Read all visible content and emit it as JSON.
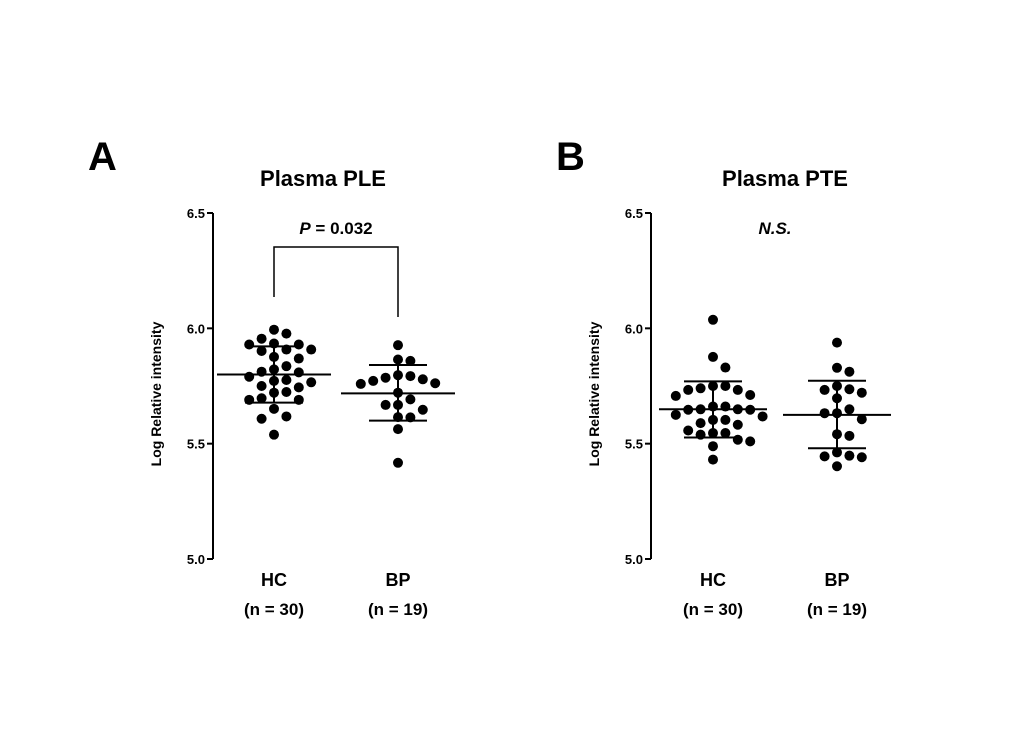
{
  "chart_data": [
    {
      "panel_label": "A",
      "type": "scatter",
      "title": "Plasma PLE",
      "ylabel": "Log Relative intensity",
      "ylim": [
        5.0,
        6.5
      ],
      "yticks": [
        "5.0",
        "5.5",
        "6.0",
        "6.5"
      ],
      "categories": [
        "HC",
        "BP"
      ],
      "category_counts": [
        "(n = 30)",
        "(n = 19)"
      ],
      "annotation": {
        "p_prefix": "P",
        "p_value": " = 0.032",
        "bracket": true
      },
      "series": [
        {
          "category": "HC",
          "mean": 5.8,
          "sd_upper": 5.922,
          "sd_lower": 5.678,
          "values": [
            5.994,
            5.977,
            5.955,
            5.934,
            5.93,
            5.93,
            5.908,
            5.908,
            5.902,
            5.876,
            5.869,
            5.836,
            5.822,
            5.812,
            5.809,
            5.79,
            5.772,
            5.776,
            5.766,
            5.75,
            5.744,
            5.724,
            5.721,
            5.697,
            5.69,
            5.69,
            5.651,
            5.618,
            5.608,
            5.539
          ]
        },
        {
          "category": "BP",
          "mean": 5.718,
          "sd_upper": 5.841,
          "sd_lower": 5.6,
          "values": [
            5.927,
            5.865,
            5.859,
            5.797,
            5.786,
            5.772,
            5.759,
            5.762,
            5.779,
            5.793,
            5.721,
            5.692,
            5.668,
            5.668,
            5.647,
            5.614,
            5.615,
            5.563,
            5.417
          ]
        }
      ]
    },
    {
      "panel_label": "B",
      "type": "scatter",
      "title": "Plasma PTE",
      "ylabel": "Log Relative intensity",
      "ylim": [
        5.0,
        6.5
      ],
      "yticks": [
        "5.0",
        "5.5",
        "6.0",
        "6.5"
      ],
      "categories": [
        "HC",
        "BP"
      ],
      "category_counts": [
        "(n = 30)",
        "(n = 19)"
      ],
      "annotation": {
        "text": "N.S.",
        "bracket": false
      },
      "series": [
        {
          "category": "HC",
          "mean": 5.649,
          "sd_upper": 5.77,
          "sd_lower": 5.527,
          "values": [
            6.037,
            5.876,
            5.83,
            5.75,
            5.733,
            5.707,
            5.711,
            5.74,
            5.661,
            5.649,
            5.647,
            5.625,
            5.618,
            5.647,
            5.649,
            5.661,
            5.589,
            5.582,
            5.603,
            5.546,
            5.557,
            5.539,
            5.51,
            5.517,
            5.489,
            5.431,
            5.75,
            5.733,
            5.603,
            5.546
          ]
        },
        {
          "category": "BP",
          "mean": 5.625,
          "sd_upper": 5.773,
          "sd_lower": 5.48,
          "values": [
            5.938,
            5.812,
            5.829,
            5.75,
            5.733,
            5.721,
            5.736,
            5.697,
            5.649,
            5.632,
            5.632,
            5.606,
            5.534,
            5.541,
            5.445,
            5.462,
            5.441,
            5.448,
            5.402
          ]
        }
      ]
    }
  ]
}
